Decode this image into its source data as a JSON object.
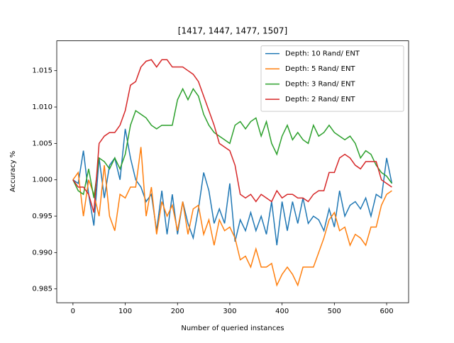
{
  "chart_data": {
    "type": "line",
    "title": "[1417, 1447, 1477, 1507]",
    "x_label": "Number of queried instances",
    "y_label": "Accuracy %",
    "x": [
      0,
      10,
      20,
      30,
      40,
      50,
      60,
      70,
      80,
      90,
      100,
      110,
      120,
      130,
      140,
      150,
      160,
      170,
      180,
      190,
      200,
      210,
      220,
      230,
      240,
      250,
      260,
      270,
      280,
      290,
      300,
      310,
      320,
      330,
      340,
      350,
      360,
      370,
      380,
      390,
      400,
      410,
      420,
      430,
      440,
      450,
      460,
      470,
      480,
      490,
      500,
      510,
      520,
      530,
      540,
      550,
      560,
      570,
      580,
      590,
      600,
      610
    ],
    "series": [
      {
        "name": "Depth: 10 Rand/ ENT",
        "color": "#1f77b4",
        "values": [
          1.0,
          0.9995,
          1.004,
          0.998,
          0.9937,
          1.003,
          0.9975,
          1.002,
          1.003,
          1.0,
          1.007,
          1.003,
          1.0,
          0.999,
          0.997,
          0.998,
          0.993,
          0.9985,
          0.9925,
          0.998,
          0.9925,
          0.997,
          0.994,
          0.992,
          0.996,
          1.001,
          0.9985,
          0.994,
          0.996,
          0.994,
          0.9995,
          0.9915,
          0.9945,
          0.993,
          0.9955,
          0.993,
          0.995,
          0.9925,
          0.997,
          0.991,
          0.997,
          0.993,
          0.997,
          0.994,
          0.9975,
          0.994,
          0.995,
          0.9945,
          0.993,
          0.996,
          0.9935,
          0.9985,
          0.995,
          0.9965,
          0.997,
          0.996,
          0.9975,
          0.995,
          0.998,
          0.9975,
          1.003,
          0.9995
        ]
      },
      {
        "name": "Depth: 5 Rand/ ENT",
        "color": "#ff7f0e",
        "values": [
          1.0,
          1.001,
          0.995,
          1.0,
          0.998,
          0.995,
          1.002,
          0.995,
          0.993,
          0.998,
          0.9975,
          0.999,
          0.999,
          1.0045,
          0.995,
          0.999,
          0.9925,
          0.997,
          0.995,
          0.9965,
          0.993,
          0.997,
          0.9925,
          0.996,
          0.9965,
          0.9925,
          0.9945,
          0.991,
          0.9945,
          0.993,
          0.9935,
          0.992,
          0.989,
          0.9895,
          0.988,
          0.9905,
          0.988,
          0.988,
          0.9885,
          0.9855,
          0.987,
          0.988,
          0.987,
          0.9855,
          0.988,
          0.988,
          0.988,
          0.99,
          0.992,
          0.9945,
          0.9955,
          0.993,
          0.9935,
          0.991,
          0.9925,
          0.992,
          0.991,
          0.9935,
          0.9935,
          0.9965,
          0.998,
          0.9985
        ]
      },
      {
        "name": "Depth: 3 Rand/ ENT",
        "color": "#2ca02c",
        "values": [
          1.0,
          0.9985,
          0.998,
          1.0015,
          0.9975,
          1.003,
          1.0025,
          1.0015,
          1.003,
          1.0015,
          1.0035,
          1.0075,
          1.0095,
          1.009,
          1.0085,
          1.0075,
          1.007,
          1.0075,
          1.0075,
          1.0075,
          1.011,
          1.0125,
          1.011,
          1.0125,
          1.0115,
          1.009,
          1.0075,
          1.0065,
          1.006,
          1.0055,
          1.005,
          1.0075,
          1.008,
          1.007,
          1.008,
          1.0085,
          1.006,
          1.008,
          1.005,
          1.0035,
          1.006,
          1.0075,
          1.0055,
          1.0065,
          1.0055,
          1.005,
          1.0075,
          1.006,
          1.0065,
          1.0075,
          1.0065,
          1.006,
          1.0055,
          1.006,
          1.005,
          1.003,
          1.004,
          1.0035,
          1.002,
          1.001,
          1.0005,
          0.9995
        ]
      },
      {
        "name": "Depth: 2 Rand/ ENT",
        "color": "#d62728",
        "values": [
          1.0,
          0.999,
          0.999,
          0.998,
          0.9955,
          1.005,
          1.006,
          1.0065,
          1.0065,
          1.0075,
          1.0095,
          1.013,
          1.0135,
          1.0155,
          1.0163,
          1.0165,
          1.0155,
          1.0165,
          1.0165,
          1.0155,
          1.0155,
          1.0155,
          1.015,
          1.0145,
          1.0135,
          1.0115,
          1.0095,
          1.0075,
          1.005,
          1.0045,
          1.004,
          1.002,
          0.998,
          0.9975,
          0.998,
          0.997,
          0.998,
          0.9975,
          0.997,
          0.9985,
          0.9975,
          0.998,
          0.998,
          0.9975,
          0.9975,
          0.997,
          0.998,
          0.9985,
          0.9985,
          1.001,
          1.001,
          1.003,
          1.0035,
          1.003,
          1.002,
          1.0015,
          1.0025,
          1.0025,
          1.0025,
          1.0,
          0.9995,
          0.999
        ]
      }
    ],
    "xlim": [
      -31,
      642
    ],
    "ylim": [
      0.9831,
      1.0191
    ],
    "xticks": [
      0,
      100,
      200,
      300,
      400,
      500,
      600
    ],
    "yticks": [
      0.985,
      {
        "value": 0.99,
        "label": "0.990"
      },
      0.995,
      {
        "value": 1.0,
        "label": "1.000"
      },
      1.005,
      {
        "value": 1.01,
        "label": "1.010"
      },
      1.015
    ],
    "legend": "upper right"
  }
}
